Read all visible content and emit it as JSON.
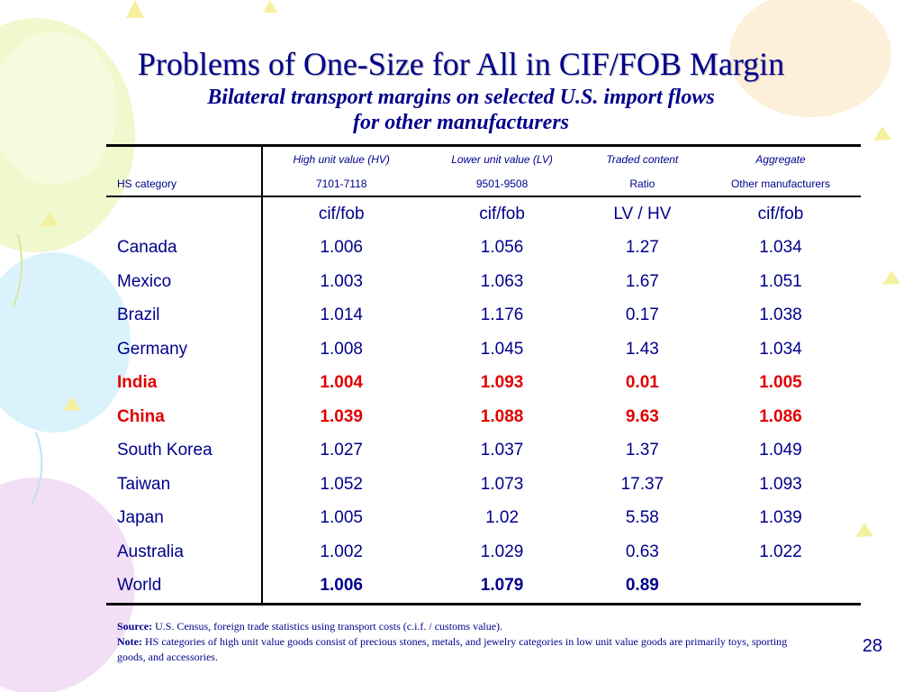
{
  "title": "Problems of One-Size for All in CIF/FOB Margin",
  "subtitle_line1": "Bilateral transport margins on selected U.S. import flows",
  "subtitle_line2": "for other manufacturers",
  "table": {
    "header_row1": [
      "",
      "High unit value (HV)",
      "Lower unit value (LV)",
      "Traded content",
      "Aggregate"
    ],
    "header_row2": [
      "HS category",
      "7101-7118",
      "9501-9508",
      "Ratio",
      "Other manufacturers"
    ],
    "units": [
      "",
      "cif/fob",
      "cif/fob",
      "LV / HV",
      "cif/fob"
    ],
    "rows": [
      {
        "name": "Canada",
        "hv": "1.006",
        "lv": "1.056",
        "ratio": "1.27",
        "agg": "1.034"
      },
      {
        "name": "Mexico",
        "hv": "1.003",
        "lv": "1.063",
        "ratio": "1.67",
        "agg": "1.051"
      },
      {
        "name": "Brazil",
        "hv": "1.014",
        "lv": "1.176",
        "ratio": "0.17",
        "agg": "1.038"
      },
      {
        "name": "Germany",
        "hv": "1.008",
        "lv": "1.045",
        "ratio": "1.43",
        "agg": "1.034"
      },
      {
        "name": "India",
        "hv": "1.004",
        "lv": "1.093",
        "ratio": "0.01",
        "agg": "1.005"
      },
      {
        "name": "China",
        "hv": "1.039",
        "lv": "1.088",
        "ratio": "9.63",
        "agg": "1.086"
      },
      {
        "name": "South Korea",
        "hv": "1.027",
        "lv": "1.037",
        "ratio": "1.37",
        "agg": "1.049"
      },
      {
        "name": "Taiwan",
        "hv": "1.052",
        "lv": "1.073",
        "ratio": "17.37",
        "agg": "1.093"
      },
      {
        "name": "Japan",
        "hv": "1.005",
        "lv": "1.02",
        "ratio": "5.58",
        "agg": "1.039"
      },
      {
        "name": "Australia",
        "hv": "1.002",
        "lv": "1.029",
        "ratio": "0.63",
        "agg": "1.022"
      },
      {
        "name": "World",
        "hv": "1.006",
        "lv": "1.079",
        "ratio": "0.89",
        "agg": ""
      }
    ]
  },
  "source_label": "Source:",
  "source_text": "U.S. Census, foreign trade statistics using transport costs (c.i.f. / customs value).",
  "note_label": "Note:",
  "note_text": "HS categories of high unit value goods consist of precious stones, metals, and jewelry categories in low unit value goods are primarily toys, sporting goods, and accessories.",
  "page_number": "28",
  "colors": {
    "text": "#00008b",
    "highlight": "#e00000"
  }
}
